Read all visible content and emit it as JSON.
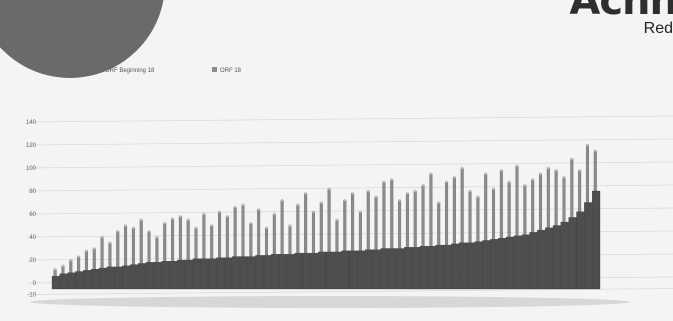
{
  "brand": {
    "text": "Acnn",
    "subtitle": "Red"
  },
  "chart_data": {
    "type": "bar",
    "title": "",
    "xlabel": "",
    "ylabel": "",
    "ylim": [
      -10,
      150
    ],
    "yticks": [
      -10,
      0,
      20,
      40,
      60,
      80,
      100,
      120,
      140
    ],
    "ytick_labels": [
      "-10",
      "0",
      "20",
      "40",
      "60",
      "80",
      "100",
      "120",
      "140"
    ],
    "grid": true,
    "legend_position": "top-left",
    "legend": [
      {
        "label": "ORF Beginning 18",
        "color": "#555555"
      },
      {
        "label": "ORF 18",
        "color": "#8c8c8c"
      }
    ],
    "series": [
      {
        "name": "ORF Beginning 18",
        "values": [
          6,
          8,
          9,
          10,
          11,
          12,
          13,
          14,
          14,
          15,
          16,
          17,
          18,
          18,
          19,
          19,
          20,
          20,
          21,
          21,
          21,
          22,
          22,
          23,
          23,
          23,
          24,
          24,
          25,
          25,
          25,
          26,
          26,
          26,
          27,
          27,
          27,
          28,
          28,
          28,
          29,
          29,
          30,
          30,
          30,
          31,
          31,
          32,
          32,
          33,
          33,
          34,
          35,
          35,
          36,
          37,
          38,
          39,
          40,
          41,
          42,
          44,
          46,
          48,
          50,
          53,
          57,
          62,
          70,
          80
        ]
      },
      {
        "name": "ORF 18",
        "values": [
          12,
          15,
          20,
          23,
          28,
          30,
          40,
          35,
          45,
          50,
          48,
          55,
          45,
          40,
          52,
          56,
          58,
          55,
          48,
          60,
          50,
          62,
          58,
          66,
          68,
          52,
          64,
          48,
          60,
          72,
          50,
          68,
          78,
          62,
          70,
          82,
          55,
          72,
          78,
          62,
          80,
          75,
          88,
          90,
          72,
          78,
          80,
          85,
          95,
          70,
          88,
          92,
          100,
          80,
          75,
          95,
          82,
          98,
          88,
          102,
          85,
          90,
          95,
          100,
          98,
          92,
          108,
          98,
          120,
          115
        ]
      }
    ]
  }
}
